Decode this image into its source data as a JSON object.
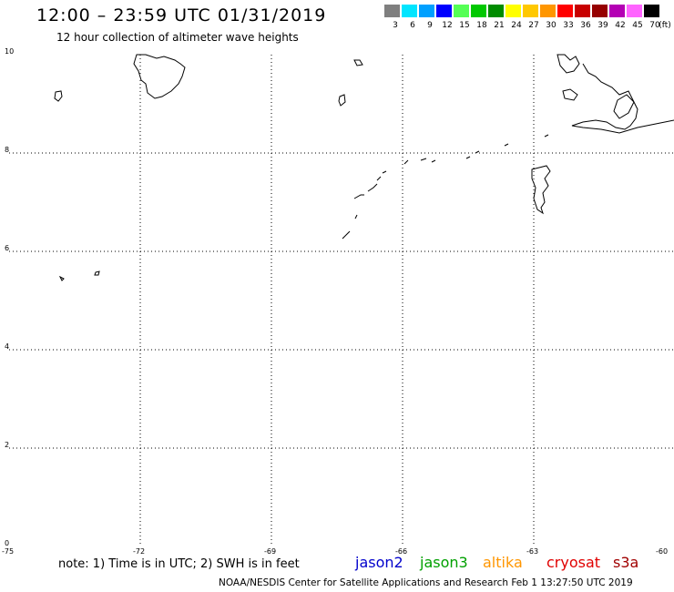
{
  "header": {
    "title": "12:00 – 23:59 UTC 01/31/2019",
    "subtitle": "12 hour collection of altimeter wave heights"
  },
  "color_scale": {
    "unit_label": "(ft)",
    "bins": [
      {
        "label": "3",
        "color": "#7f7f7f"
      },
      {
        "label": "6",
        "color": "#00e5ff"
      },
      {
        "label": "9",
        "color": "#00a0ff"
      },
      {
        "label": "12",
        "color": "#0000ff"
      },
      {
        "label": "15",
        "color": "#55ff55"
      },
      {
        "label": "18",
        "color": "#00c800"
      },
      {
        "label": "21",
        "color": "#008c00"
      },
      {
        "label": "24",
        "color": "#ffff00"
      },
      {
        "label": "27",
        "color": "#ffc800"
      },
      {
        "label": "30",
        "color": "#ff9600"
      },
      {
        "label": "33",
        "color": "#ff0000"
      },
      {
        "label": "36",
        "color": "#c80000"
      },
      {
        "label": "39",
        "color": "#960000"
      },
      {
        "label": "42",
        "color": "#b400b4"
      },
      {
        "label": "45",
        "color": "#ff64ff"
      },
      {
        "label": "70",
        "color": "#000000"
      }
    ]
  },
  "map": {
    "lon_labels": [
      "-75",
      "-72",
      "-69",
      "-66",
      "-63",
      "-60"
    ],
    "lat_labels": [
      "0",
      "2",
      "4",
      "6",
      "8",
      "10"
    ]
  },
  "footer": {
    "note": "note: 1) Time is in UTC; 2) SWH is in feet",
    "satellites": [
      {
        "name": "jason2",
        "color": "#0000cc"
      },
      {
        "name": "jason3",
        "color": "#00a000"
      },
      {
        "name": "altika",
        "color": "#ff9600"
      },
      {
        "name": "cryosat",
        "color": "#e00000"
      },
      {
        "name": "s3a",
        "color": "#a00000"
      }
    ],
    "credit": "NOAA/NESDIS Center for Satellite Applications and Research    Feb  1 13:27:50 UTC 2019"
  }
}
